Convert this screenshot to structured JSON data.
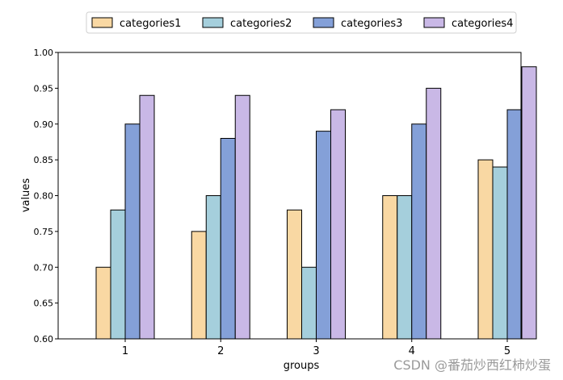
{
  "chart_data": {
    "type": "bar",
    "title": "",
    "xlabel": "groups",
    "ylabel": "values",
    "categories": [
      "1",
      "2",
      "3",
      "4",
      "5"
    ],
    "ylim": [
      0.6,
      1.0
    ],
    "yticks": [
      "0.60",
      "0.65",
      "0.70",
      "0.75",
      "0.80",
      "0.85",
      "0.90",
      "0.95",
      "1.00"
    ],
    "grid": false,
    "legend_position": "top-center",
    "series": [
      {
        "name": "categories1",
        "color": "#f9d8a3",
        "values": [
          0.7,
          0.75,
          0.78,
          0.8,
          0.85
        ]
      },
      {
        "name": "categories2",
        "color": "#a5cfdc",
        "values": [
          0.78,
          0.8,
          0.7,
          0.8,
          0.84
        ]
      },
      {
        "name": "categories3",
        "color": "#84a0d8",
        "values": [
          0.9,
          0.88,
          0.89,
          0.9,
          0.92
        ]
      },
      {
        "name": "categories4",
        "color": "#c9b8e6",
        "values": [
          0.94,
          0.94,
          0.92,
          0.95,
          0.98
        ]
      }
    ]
  },
  "watermark": "CSDN @番茄炒西红柿炒蛋"
}
